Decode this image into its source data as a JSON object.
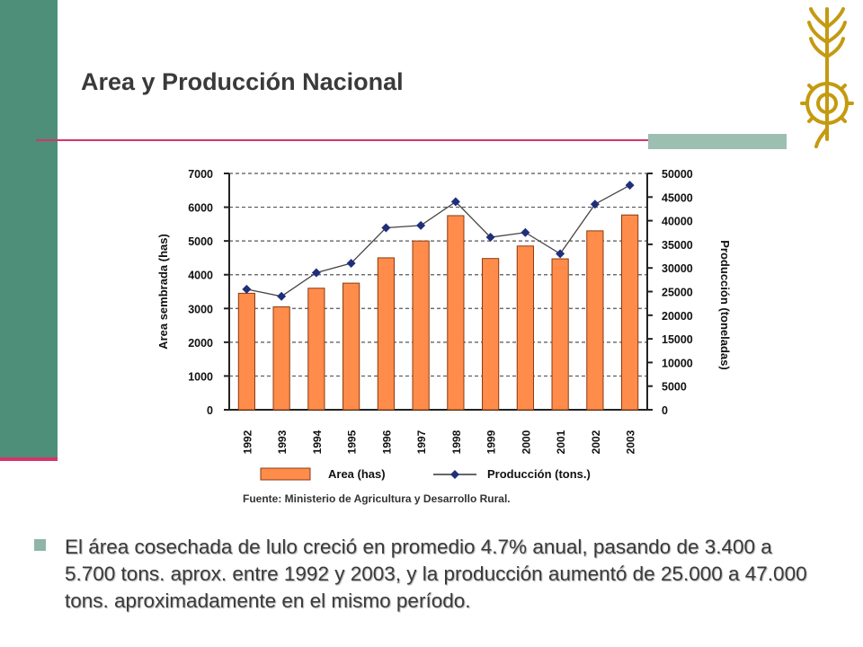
{
  "slide": {
    "title": "Area y Producción Nacional",
    "source": "Fuente: Ministerio de Agricultura y Desarrollo Rural.",
    "bullet": "El área cosechada de lulo creció en promedio 4.7% anual, pasando de 3.400 a 5.700 tons. aprox. entre 1992 y 2003, y la producción aumentó de 25.000 a 47.000 tons. aproximadamente en el mismo período."
  },
  "colors": {
    "sidebar": "#4e8f7a",
    "accent_line": "#d6336c",
    "bar_fill": "#ff8c4a",
    "bar_stroke": "#8a3a10",
    "line_marker": "#1f2f7a",
    "logo": "#c49a10"
  },
  "chart_data": {
    "type": "bar",
    "categories": [
      "1992",
      "1993",
      "1994",
      "1995",
      "1996",
      "1997",
      "1998",
      "1999",
      "2000",
      "2001",
      "2002",
      "2003"
    ],
    "series": [
      {
        "name": "Area (has)",
        "type": "bar",
        "axis": "left",
        "values": [
          3450,
          3050,
          3600,
          3750,
          4500,
          5000,
          5750,
          4480,
          4850,
          4470,
          5300,
          5770
        ]
      },
      {
        "name": "Producción (tons.)",
        "type": "line",
        "axis": "right",
        "values": [
          25500,
          24000,
          29000,
          31000,
          38500,
          39000,
          44000,
          36500,
          37500,
          33000,
          43500,
          47500
        ]
      }
    ],
    "ylabel": "Area sembrada (has)",
    "y2label": "Producción (toneladas)",
    "ylim": [
      0,
      7000
    ],
    "yticks": [
      0,
      1000,
      2000,
      3000,
      4000,
      5000,
      6000,
      7000
    ],
    "y2lim": [
      0,
      50000
    ],
    "y2ticks": [
      0,
      5000,
      10000,
      15000,
      20000,
      25000,
      30000,
      35000,
      40000,
      45000,
      50000
    ],
    "grid": "horizontal-dashed",
    "legend_position": "bottom"
  }
}
